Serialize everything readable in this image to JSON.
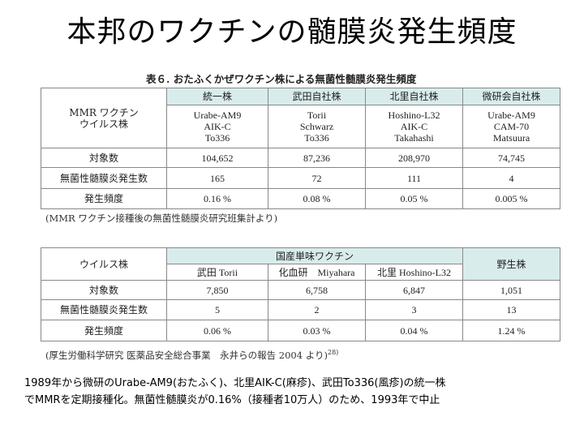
{
  "slide_title": "本邦のワクチンの髄膜炎発生頻度",
  "table1": {
    "caption": "表６. おたふくかぜワクチン株による無菌性髄膜炎発生頻度",
    "corner_label": [
      "MMR ワクチン",
      "ウイルス株"
    ],
    "headers": [
      "統一株",
      "武田自社株",
      "北里自社株",
      "微研会自社株"
    ],
    "strains": [
      [
        "Urabe-AM9",
        "AIK-C",
        "To336"
      ],
      [
        "Torii",
        "Schwarz",
        "To336"
      ],
      [
        "Hoshino-L32",
        "AIK-C",
        "Takahashi"
      ],
      [
        "Urabe-AM9",
        "CAM-70",
        "Matsuura"
      ]
    ],
    "rows": [
      {
        "label": "対象数",
        "values": [
          "104,652",
          "87,236",
          "208,970",
          "74,745"
        ]
      },
      {
        "label": "無菌性髄膜炎発生数",
        "values": [
          "165",
          "72",
          "111",
          "4"
        ]
      },
      {
        "label": "発生頻度",
        "values": [
          "0.16 %",
          "0.08 %",
          "0.05 %",
          "0.005 %"
        ]
      }
    ],
    "source": "(MMR ワクチン接種後の無菌性髄膜炎研究班集計より)"
  },
  "table2": {
    "corner_label": "ウイルス株",
    "group_header": "国産単味ワクチン",
    "wild_header": "野生株",
    "subheaders": [
      "武田 Torii",
      "化血研　Miyahara",
      "北里 Hoshino-L32"
    ],
    "rows": [
      {
        "label": "対象数",
        "values": [
          "7,850",
          "6,758",
          "6,847",
          "1,051"
        ]
      },
      {
        "label": "無菌性髄膜炎発生数",
        "values": [
          "5",
          "2",
          "3",
          "13"
        ]
      },
      {
        "label": "発生頻度",
        "values": [
          "0.06 %",
          "0.03 %",
          "0.04 %",
          "1.24 %"
        ]
      }
    ],
    "source": "(厚生労働科学研究 医薬品安全総合事業　永井らの報告 2004 より)",
    "source_ref": "28)"
  },
  "summary": [
    "1989年から微研のUrabe-AM9(おたふく)、北里AIK-C(麻疹)、武田To336(風疹)の統一株",
    "でMMRを定期接種化。無菌性髄膜炎が0.16%（接種者10万人）のため、1993年で中止"
  ]
}
